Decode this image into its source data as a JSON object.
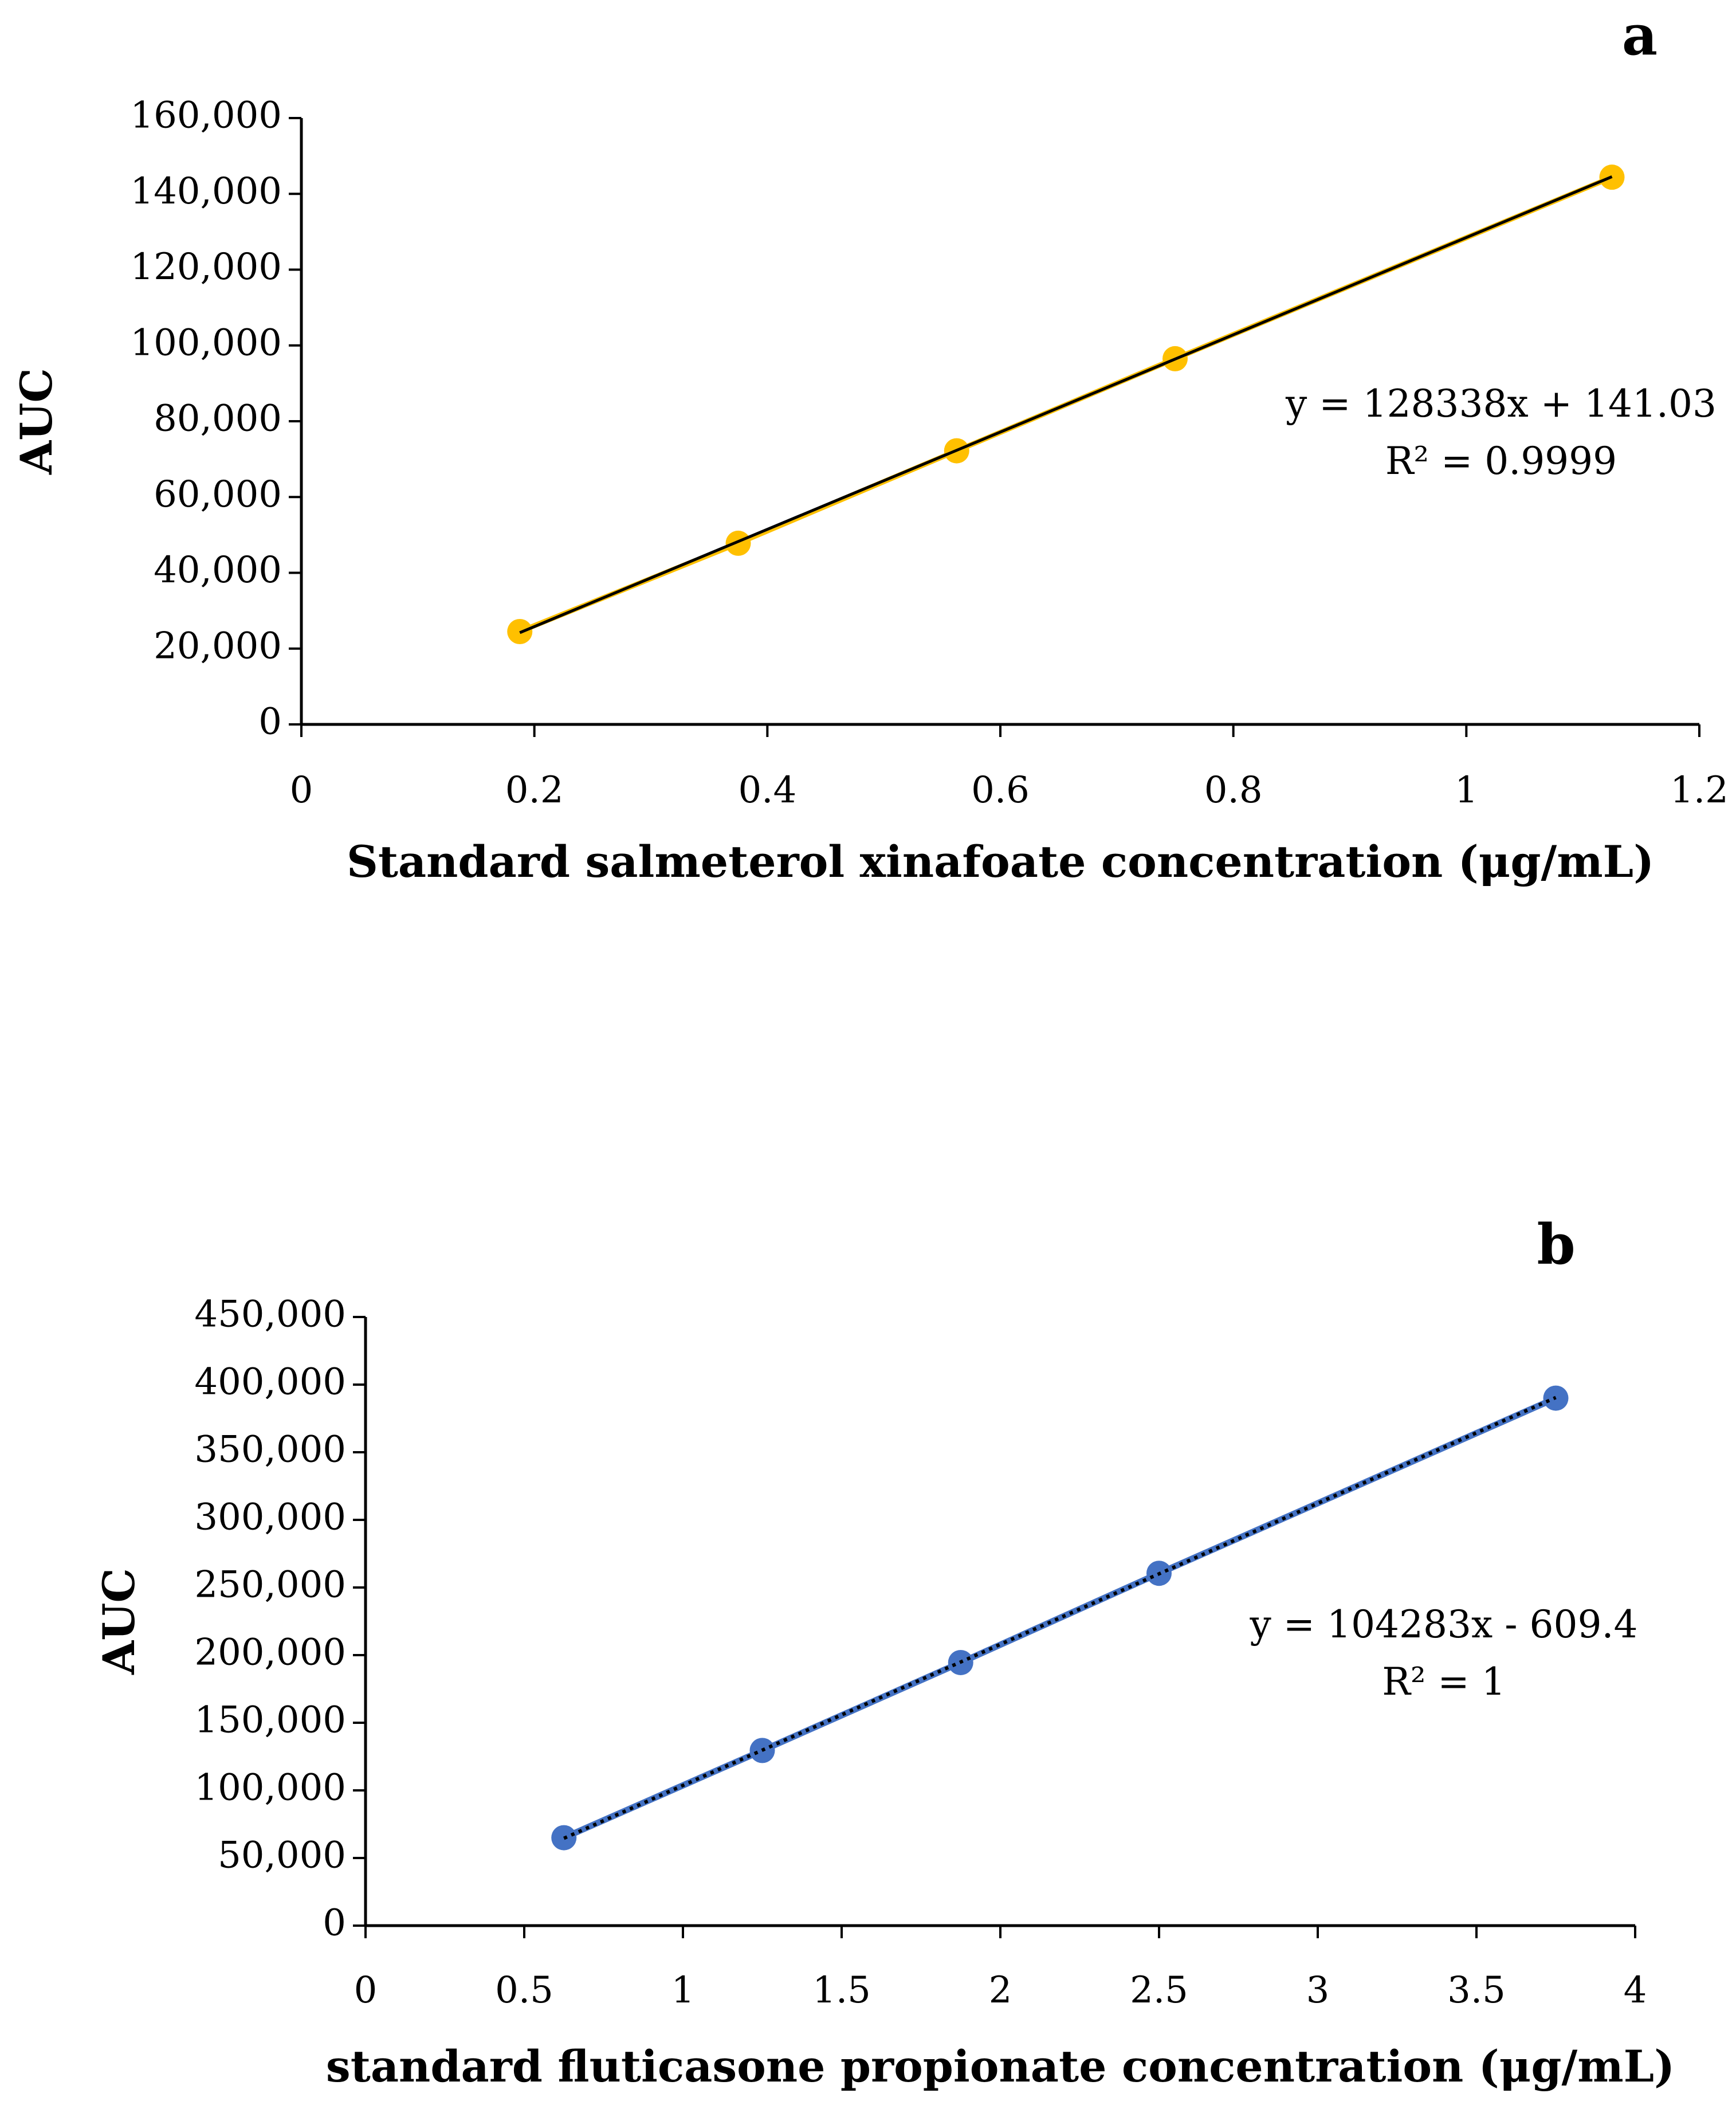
{
  "chart_data": [
    {
      "type": "scatter",
      "panel_label": "a",
      "title": "",
      "xlabel": "Standard salmeterol xinafoate concentration (μg/mL)",
      "ylabel": "AUC",
      "xlim": [
        0,
        1.2
      ],
      "ylim": [
        0,
        160000
      ],
      "x_ticks": [
        0,
        0.2,
        0.4,
        0.6,
        0.8,
        1,
        1.2
      ],
      "x_tick_labels": [
        "0",
        "0.2",
        "0.4",
        "0.6",
        "0.8",
        "1",
        "1.2"
      ],
      "y_ticks": [
        0,
        20000,
        40000,
        60000,
        80000,
        100000,
        120000,
        140000,
        160000
      ],
      "y_tick_labels": [
        "0",
        "20,000",
        "40,000",
        "60,000",
        "80,000",
        "100,000",
        "120,000",
        "140,000",
        "160,000"
      ],
      "series": [
        {
          "name": "salmeterol xinafoate",
          "x": [
            0.1875,
            0.375,
            0.5625,
            0.75,
            1.125
          ],
          "y": [
            24500,
            47800,
            72200,
            96500,
            144400
          ],
          "color": "#FFC000"
        }
      ],
      "trendline": {
        "slope": 128338,
        "intercept": 141.03,
        "style": "solid",
        "color": "#000000",
        "equation": "y = 128338x + 141.03",
        "r_squared": "R² = 0.9999"
      },
      "grid": false
    },
    {
      "type": "scatter",
      "panel_label": "b",
      "title": "",
      "xlabel": "standard fluticasone propionate concentration (μg/mL)",
      "ylabel": "AUC",
      "xlim": [
        0,
        4
      ],
      "ylim": [
        0,
        450000
      ],
      "x_ticks": [
        0,
        0.5,
        1,
        1.5,
        2,
        2.5,
        3,
        3.5,
        4
      ],
      "x_tick_labels": [
        "0",
        "0.5",
        "1",
        "1.5",
        "2",
        "2.5",
        "3",
        "3.5",
        "4"
      ],
      "y_ticks": [
        0,
        50000,
        100000,
        150000,
        200000,
        250000,
        300000,
        350000,
        400000,
        450000
      ],
      "y_tick_labels": [
        "0",
        "50,000",
        "100,000",
        "150,000",
        "200,000",
        "250,000",
        "300,000",
        "350,000",
        "400,000",
        "450,000"
      ],
      "series": [
        {
          "name": "fluticasone propionate",
          "x": [
            0.625,
            1.25,
            1.875,
            2.5,
            3.75
          ],
          "y": [
            65000,
            129500,
            194500,
            260500,
            390000
          ],
          "color": "#4472C4"
        }
      ],
      "trendline": {
        "slope": 104283,
        "intercept": -609.4,
        "style": "dotted",
        "color": "#000000",
        "equation": "y = 104283x - 609.4",
        "r_squared": "R² = 1"
      },
      "grid": false
    }
  ]
}
